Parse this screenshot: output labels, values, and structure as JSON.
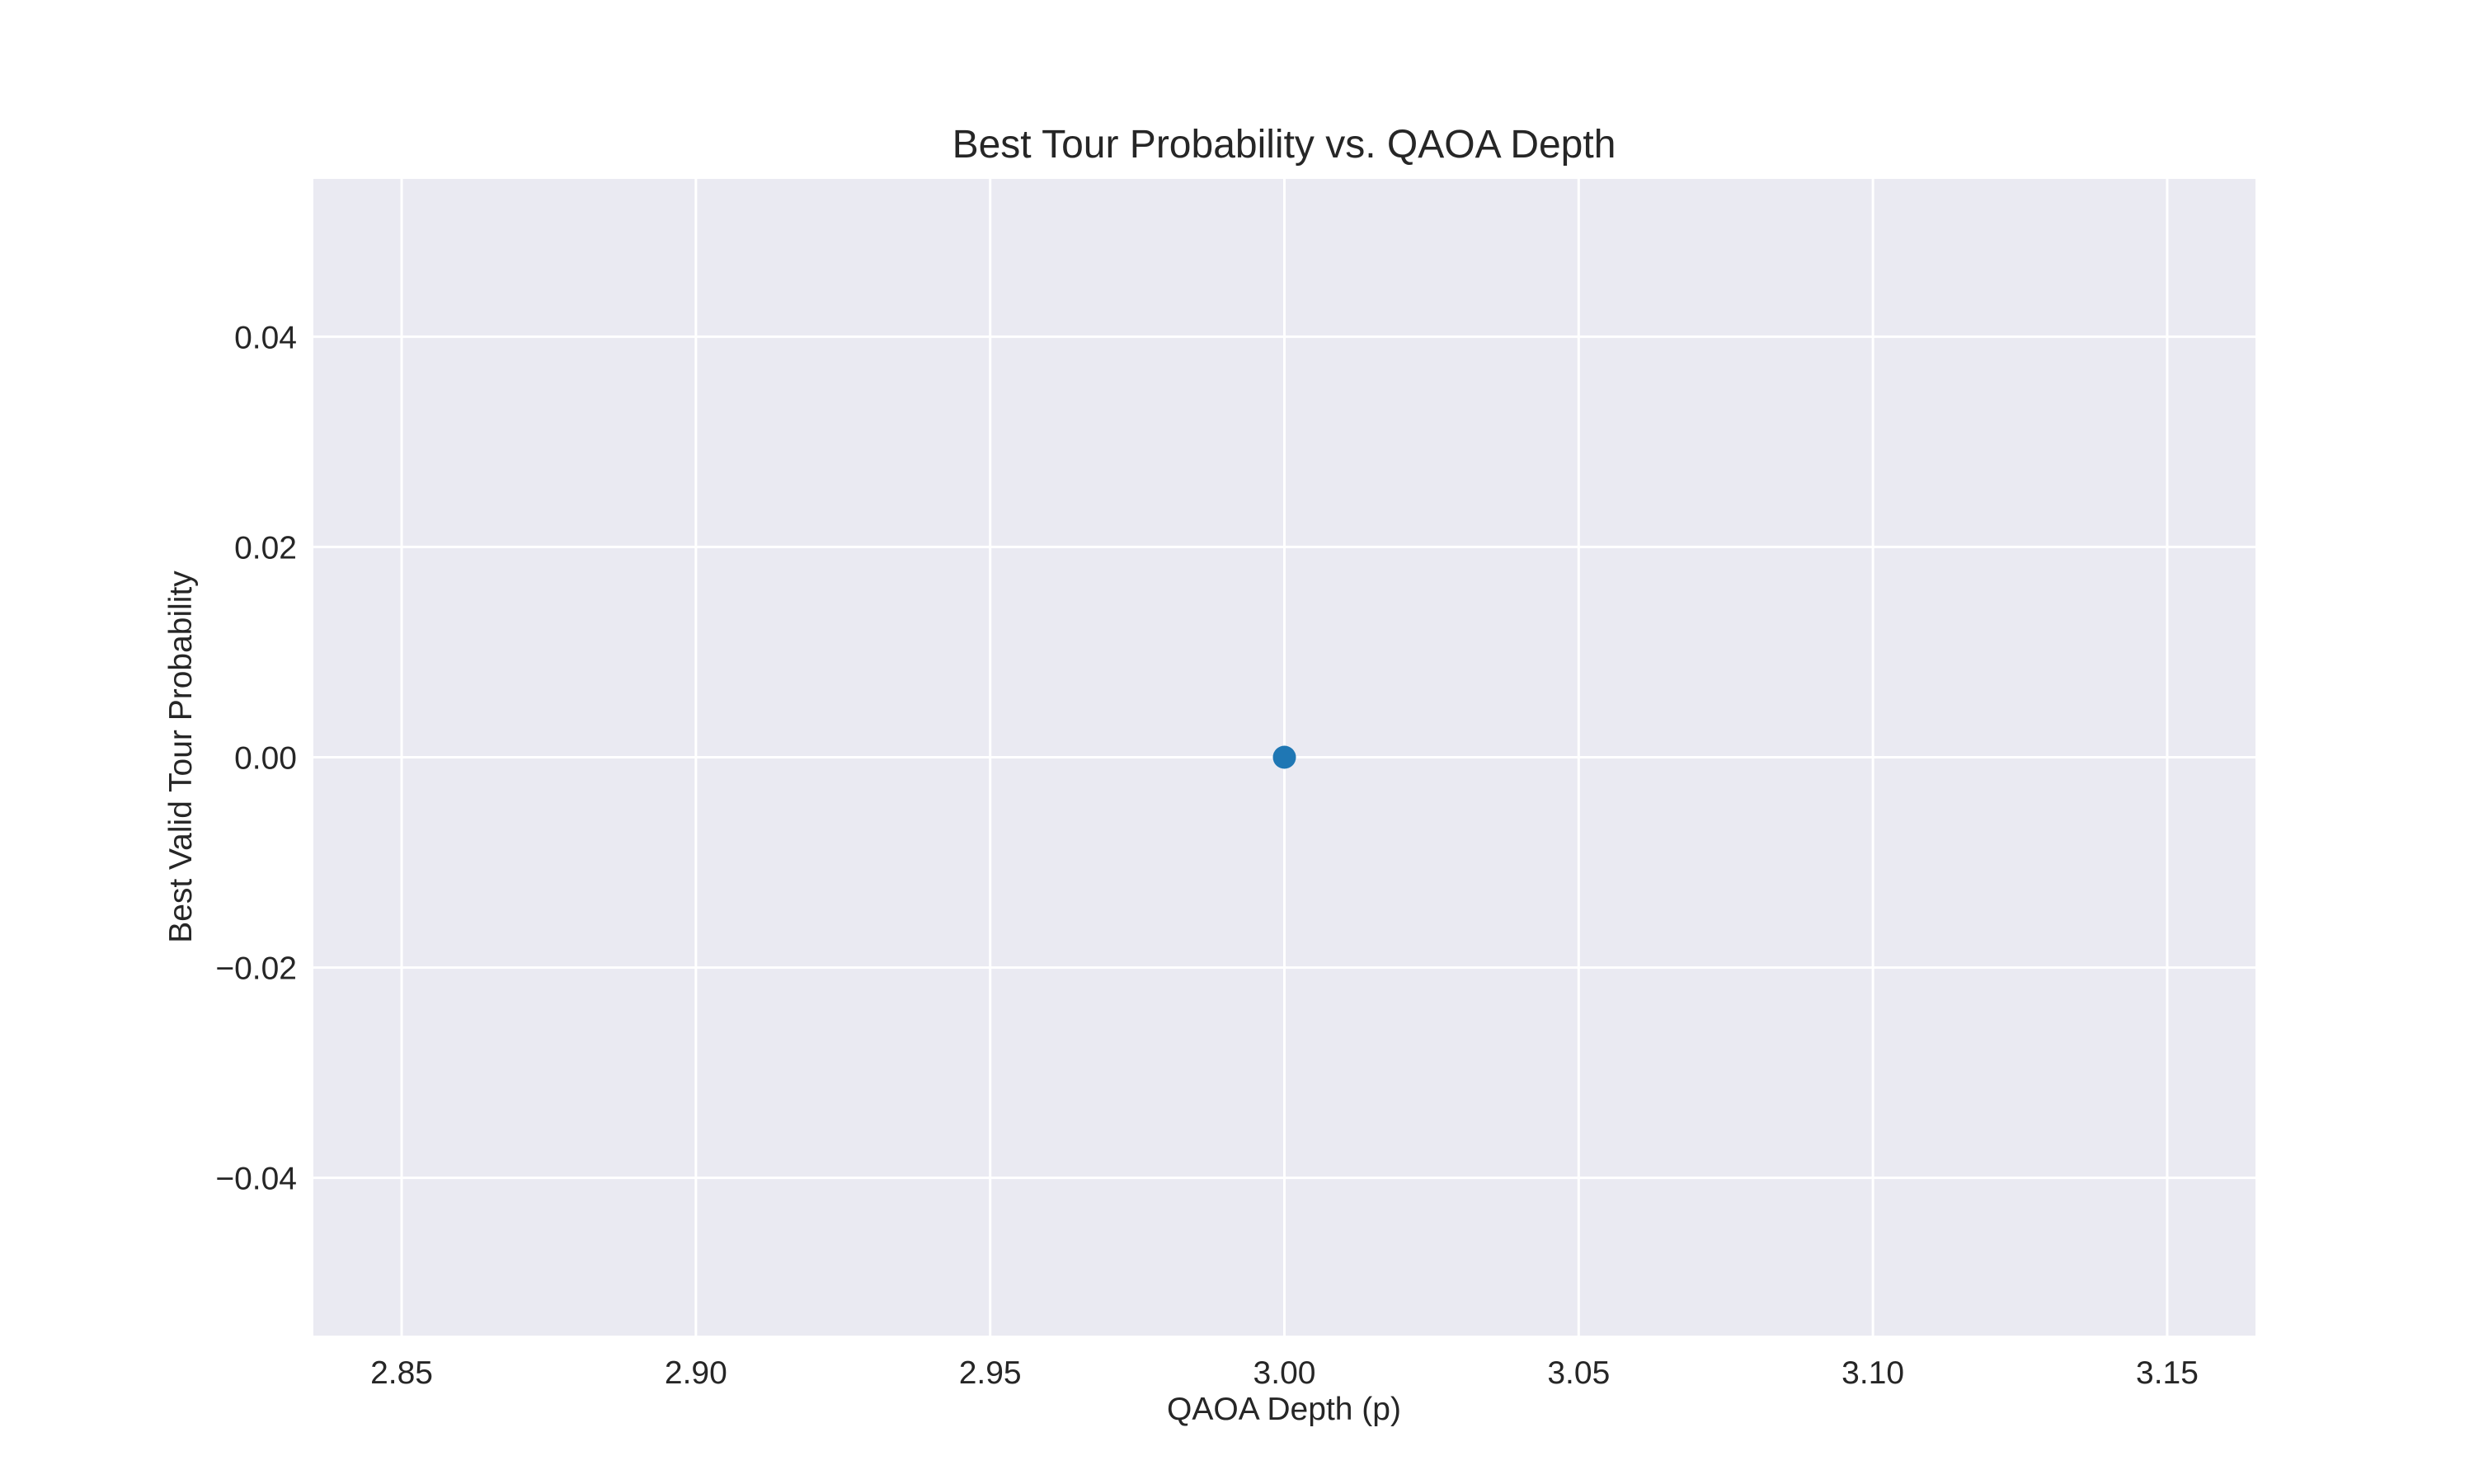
{
  "chart_data": {
    "type": "line",
    "title": "Best Tour Probability vs. QAOA Depth",
    "xlabel": "QAOA Depth (p)",
    "ylabel": "Best Valid Tour Probability",
    "xlim": [
      2.835,
      3.165
    ],
    "ylim": [
      -0.055,
      0.055
    ],
    "x_ticks": [
      2.85,
      2.9,
      2.95,
      3.0,
      3.05,
      3.1,
      3.15
    ],
    "x_tick_labels": [
      "2.85",
      "2.90",
      "2.95",
      "3.00",
      "3.05",
      "3.10",
      "3.15"
    ],
    "y_ticks": [
      0.04,
      0.02,
      0.0,
      -0.02,
      -0.04
    ],
    "y_tick_labels": [
      "0.04",
      "0.02",
      "0.00",
      "−0.02",
      "−0.04"
    ],
    "grid": true,
    "series": [
      {
        "x": [
          3
        ],
        "y": [
          0.0
        ],
        "color": "#1F77B4",
        "marker": "circle"
      }
    ],
    "background_color": "#EAEAF2",
    "grid_color": "#FFFFFF"
  }
}
